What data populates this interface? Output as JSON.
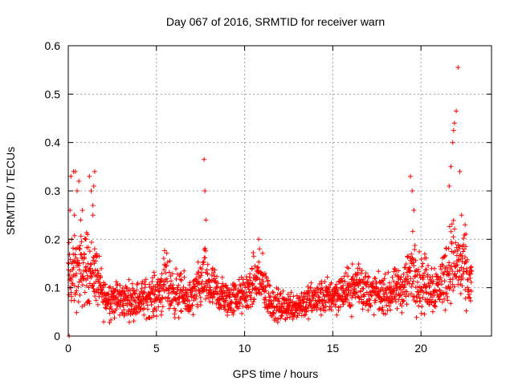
{
  "chart_data": {
    "type": "scatter",
    "title": "Day 067 of 2016, SRMTID for receiver warn",
    "xlabel": "GPS time / hours",
    "ylabel": "SRMTID / TECUs",
    "xlim": [
      0,
      24
    ],
    "ylim": [
      0,
      0.6
    ],
    "xticks": [
      0,
      5,
      10,
      15,
      20
    ],
    "xtick_labels": [
      "0",
      "5",
      "10",
      "15",
      "20"
    ],
    "yticks": [
      0,
      0.1,
      0.2,
      0.3,
      0.4,
      0.5,
      0.6
    ],
    "ytick_labels": [
      "0",
      "0.1",
      "0.2",
      "0.3",
      "0.4",
      "0.5",
      "0.6"
    ],
    "grid": true,
    "marker": "+",
    "color": "#ff0000",
    "x_range_of_data": [
      0,
      22.9
    ],
    "series": [
      {
        "name": "SRMTID",
        "x": [
          0.05,
          0.1,
          0.15,
          0.2,
          0.3,
          0.35,
          0.4,
          0.5,
          0.6,
          0.7,
          0.8,
          0.9,
          1.0,
          1.1,
          1.2,
          1.3,
          1.4,
          1.5,
          1.6,
          1.5,
          1.45,
          1.4,
          7.7,
          7.75,
          7.8,
          10.8,
          10.85,
          19.4,
          19.5,
          19.6,
          21.6,
          21.7,
          21.8,
          21.85,
          21.9,
          22.0,
          22.1,
          22.2,
          22.3,
          22.5
        ],
        "y": [
          0.0,
          0.26,
          0.33,
          0.2,
          0.34,
          0.25,
          0.34,
          0.3,
          0.32,
          0.24,
          0.26,
          0.17,
          0.2,
          0.21,
          0.33,
          0.3,
          0.25,
          0.18,
          0.17,
          0.34,
          0.31,
          0.27,
          0.365,
          0.3,
          0.24,
          0.2,
          0.18,
          0.33,
          0.3,
          0.26,
          0.31,
          0.35,
          0.4,
          0.425,
          0.44,
          0.465,
          0.555,
          0.34,
          0.25,
          0.23
        ]
      }
    ],
    "background_profile": {
      "description": "dense cloud of points across 0-22.9 h",
      "knots_x": [
        0,
        0.5,
        1.0,
        1.5,
        2,
        3,
        4,
        5,
        5.5,
        6,
        7,
        7.7,
        8,
        9,
        10,
        10.8,
        11.5,
        12,
        13,
        14,
        15,
        16,
        16.5,
        17,
        18,
        19,
        19.5,
        20,
        21,
        21.8,
        22.5,
        22.9
      ],
      "knots_median": [
        0.12,
        0.13,
        0.14,
        0.13,
        0.08,
        0.075,
        0.075,
        0.085,
        0.11,
        0.09,
        0.075,
        0.12,
        0.1,
        0.075,
        0.085,
        0.12,
        0.07,
        0.06,
        0.065,
        0.075,
        0.085,
        0.095,
        0.11,
        0.09,
        0.085,
        0.1,
        0.14,
        0.11,
        0.1,
        0.16,
        0.13,
        0.1
      ],
      "knots_spread": [
        0.06,
        0.06,
        0.06,
        0.05,
        0.035,
        0.03,
        0.03,
        0.035,
        0.05,
        0.04,
        0.03,
        0.05,
        0.04,
        0.03,
        0.03,
        0.05,
        0.03,
        0.025,
        0.025,
        0.03,
        0.03,
        0.035,
        0.045,
        0.035,
        0.03,
        0.04,
        0.06,
        0.05,
        0.04,
        0.07,
        0.06,
        0.04
      ],
      "count": 1900
    }
  }
}
